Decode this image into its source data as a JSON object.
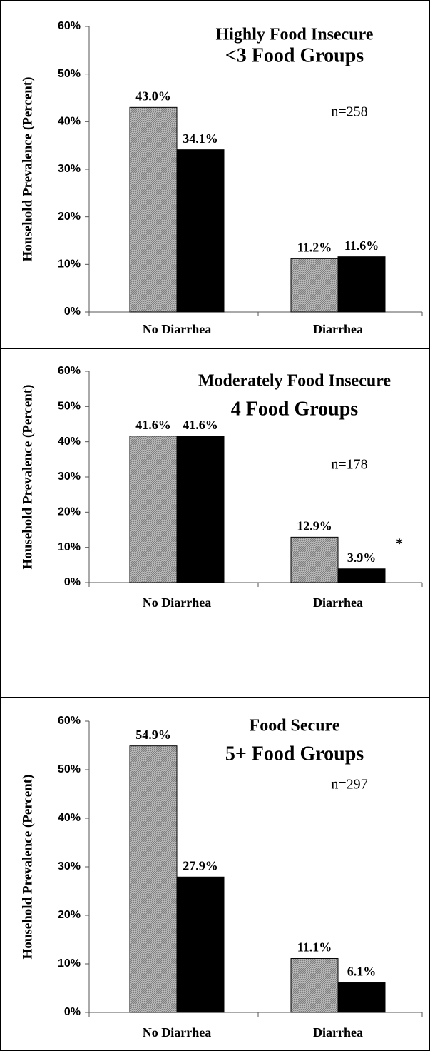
{
  "chart_data": [
    {
      "type": "bar",
      "title": "Highly Food Insecure",
      "subtitle": "<3 Food Groups",
      "y_label": "Household  Prevalence (Percent)",
      "annotations": [
        "n=258"
      ],
      "categories": [
        "No Diarrhea",
        "Diarrhea"
      ],
      "series": [
        {
          "color": "#a6a6a6",
          "values": [
            43.0,
            11.2
          ],
          "value_labels": [
            "43.0%",
            "11.2%"
          ]
        },
        {
          "color": "#000000",
          "values": [
            34.1,
            11.6
          ],
          "value_labels": [
            "34.1%",
            "11.6%"
          ]
        }
      ],
      "ylim": [
        0,
        60
      ],
      "yticks": [
        {
          "value": 0,
          "label": "0%"
        },
        {
          "value": 10,
          "label": "10%"
        },
        {
          "value": 20,
          "label": "20%"
        },
        {
          "value": 30,
          "label": "30%"
        },
        {
          "value": 40,
          "label": "40%"
        },
        {
          "value": 50,
          "label": "50%"
        },
        {
          "value": 60,
          "label": "60%"
        }
      ]
    },
    {
      "type": "bar",
      "title": "Moderately Food Insecure",
      "subtitle": "4 Food Groups",
      "y_label": "Household  Prevalence (Percent)",
      "annotations": [
        "n=178",
        "*"
      ],
      "categories": [
        "No Diarrhea",
        "Diarrhea"
      ],
      "series": [
        {
          "color": "#a6a6a6",
          "values": [
            41.6,
            12.9
          ],
          "value_labels": [
            "41.6%",
            "12.9%"
          ]
        },
        {
          "color": "#000000",
          "values": [
            41.6,
            3.9
          ],
          "value_labels": [
            "41.6%",
            "3.9%"
          ]
        }
      ],
      "ylim": [
        0,
        60
      ],
      "yticks": [
        {
          "value": 0,
          "label": "0%"
        },
        {
          "value": 10,
          "label": "10%"
        },
        {
          "value": 20,
          "label": "20%"
        },
        {
          "value": 30,
          "label": "30%"
        },
        {
          "value": 40,
          "label": "40%"
        },
        {
          "value": 50,
          "label": "50%"
        },
        {
          "value": 60,
          "label": "60%"
        }
      ]
    },
    {
      "type": "bar",
      "title": "Food Secure",
      "subtitle": "5+ Food Groups",
      "y_label": "Household  Prevalence (Percent)",
      "annotations": [
        "n=297"
      ],
      "categories": [
        "No Diarrhea",
        "Diarrhea"
      ],
      "series": [
        {
          "color": "#a6a6a6",
          "values": [
            54.9,
            11.1
          ],
          "value_labels": [
            "54.9%",
            "11.1%"
          ]
        },
        {
          "color": "#000000",
          "values": [
            27.9,
            6.1
          ],
          "value_labels": [
            "27.9%",
            "6.1%"
          ]
        }
      ],
      "ylim": [
        0,
        60
      ],
      "yticks": [
        {
          "value": 0,
          "label": "0%"
        },
        {
          "value": 10,
          "label": "10%"
        },
        {
          "value": 20,
          "label": "20%"
        },
        {
          "value": 30,
          "label": "30%"
        },
        {
          "value": 40,
          "label": "40%"
        },
        {
          "value": 50,
          "label": "50%"
        },
        {
          "value": 60,
          "label": "60%"
        }
      ]
    }
  ]
}
